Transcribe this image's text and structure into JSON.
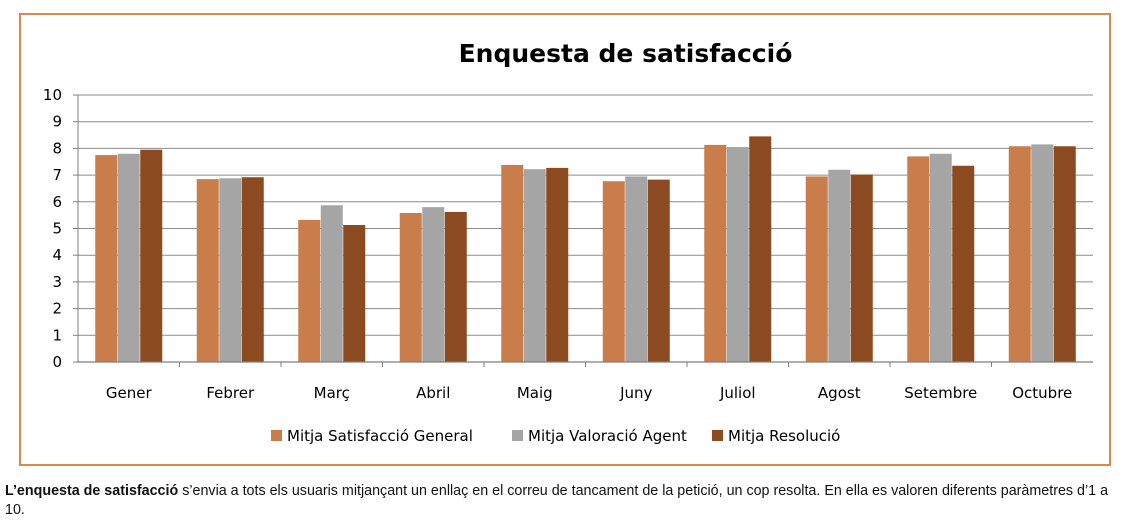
{
  "chart_data": {
    "type": "bar",
    "title": "Enquesta de satisfacció",
    "xlabel": "",
    "ylabel": "",
    "ylim": [
      0,
      10
    ],
    "yticks": [
      0,
      1,
      2,
      3,
      4,
      5,
      6,
      7,
      8,
      9,
      10
    ],
    "grid": true,
    "legend_position": "bottom",
    "categories": [
      "Gener",
      "Febrer",
      "Març",
      "Abril",
      "Maig",
      "Juny",
      "Juliol",
      "Agost",
      "Setembre",
      "Octubre"
    ],
    "series": [
      {
        "name": "Mitja Satisfacció General",
        "color": "#c87d4a",
        "values": [
          7.75,
          6.85,
          5.32,
          5.58,
          7.38,
          6.77,
          8.13,
          6.95,
          7.7,
          8.08
        ]
      },
      {
        "name": "Mitja Valoració Agent",
        "color": "#a5a5a5",
        "values": [
          7.8,
          6.88,
          5.87,
          5.8,
          7.22,
          6.95,
          8.05,
          7.2,
          7.8,
          8.15
        ]
      },
      {
        "name": "Mitja Resolució",
        "color": "#8b4a1f",
        "values": [
          7.95,
          6.92,
          5.13,
          5.62,
          7.27,
          6.83,
          8.45,
          7.02,
          7.35,
          8.08
        ]
      }
    ]
  },
  "caption": {
    "bold_lead": "L’enquesta de satisfacció",
    "text": " s’envia a tots els usuaris mitjançant un enllaç en el correu de tancament de la petició, un cop resolta. En ella es valoren diferents paràmetres d’1 a 10."
  }
}
